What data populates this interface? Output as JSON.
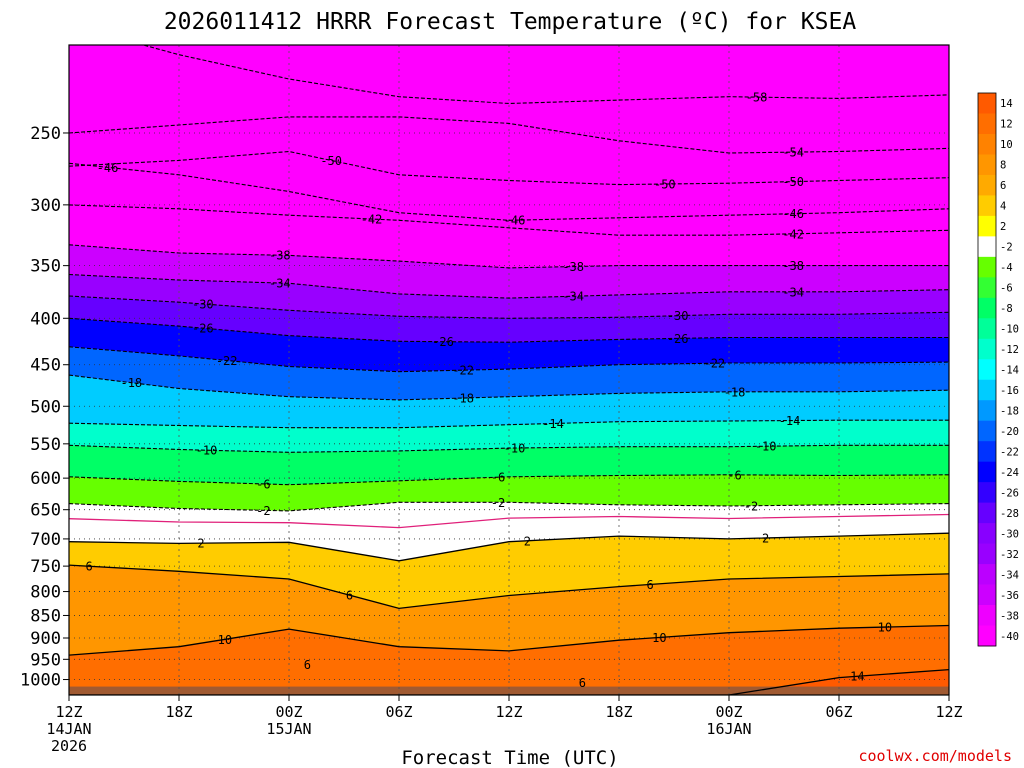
{
  "chart_data": {
    "type": "heatmap",
    "title": "2026011412 HRRR Forecast Temperature (ºC) for KSEA",
    "xlabel": "Forecast Time (UTC)",
    "ylabel": "",
    "credit": "coolwx.com/models",
    "y_scale": "log-pressure",
    "ylim": [
      1040,
      200
    ],
    "y_ticks": [
      250,
      300,
      350,
      400,
      450,
      500,
      550,
      600,
      650,
      700,
      750,
      800,
      850,
      900,
      950,
      1000
    ],
    "x_hours": [
      0,
      6,
      12,
      18,
      24,
      30,
      36,
      42,
      48
    ],
    "x_tick_labels": [
      [
        "12Z",
        "14JAN",
        "2026"
      ],
      [
        "18Z"
      ],
      [
        "00Z",
        "15JAN"
      ],
      [
        "06Z"
      ],
      [
        "12Z"
      ],
      [
        "18Z"
      ],
      [
        "00Z",
        "16JAN"
      ],
      [
        "06Z"
      ],
      [
        "12Z"
      ]
    ],
    "grid": true,
    "legend": "right colorbar",
    "colorbar_labels": [
      "14",
      "12",
      "10",
      "8",
      "6",
      "4",
      "2",
      "-2",
      "-4",
      "-6",
      "-8",
      "-10",
      "-12",
      "-14",
      "-16",
      "-18",
      "-20",
      "-22",
      "-24",
      "-26",
      "-28",
      "-30",
      "-32",
      "-34",
      "-36",
      "-38",
      "-40"
    ],
    "colorbar_colors": [
      "#ff5a00",
      "#ff6e00",
      "#ff8200",
      "#ff9600",
      "#ffaa00",
      "#ffcc00",
      "#ffff00",
      "#ffffff",
      "#66ff00",
      "#33ff33",
      "#00ff66",
      "#00ff99",
      "#00ffcc",
      "#00ffff",
      "#00ccff",
      "#0099ff",
      "#0066ff",
      "#0033ff",
      "#0000ff",
      "#3300ff",
      "#6600ff",
      "#8800ff",
      "#9900ff",
      "#bb00ff",
      "#cc00ff",
      "#ee00ff",
      "#ff00ff"
    ],
    "contour_levels": [
      {
        "value": -58,
        "pressure": [
          190,
          205,
          218,
          228,
          232,
          230,
          228,
          229,
          227
        ],
        "labels": [
          {
            "text": "-58",
            "hour": 37.5
          }
        ]
      },
      {
        "value": -54,
        "pressure": [
          250,
          245,
          240,
          240,
          244,
          255,
          263,
          262,
          260
        ],
        "labels": [
          {
            "text": "-54",
            "hour": 39.5
          }
        ]
      },
      {
        "value": -50,
        "pressure": [
          272,
          268,
          262,
          278,
          282,
          285,
          284,
          282,
          280
        ],
        "labels": [
          {
            "text": "-50",
            "hour": 14.3
          },
          {
            "text": "-50",
            "hour": 32.5
          },
          {
            "text": "-50",
            "hour": 39.5
          }
        ]
      },
      {
        "value": -46,
        "pressure": [
          270,
          278,
          290,
          306,
          312,
          310,
          308,
          306,
          303
        ],
        "labels": [
          {
            "text": "-46",
            "hour": 2.1
          },
          {
            "text": "-46",
            "hour": 24.3
          },
          {
            "text": "-46",
            "hour": 39.5
          }
        ]
      },
      {
        "value": -42,
        "pressure": [
          300,
          303,
          308,
          312,
          318,
          324,
          324,
          322,
          320
        ],
        "labels": [
          {
            "text": "-42",
            "hour": 16.5
          },
          {
            "text": "-42",
            "hour": 39.5
          }
        ]
      },
      {
        "value": -38,
        "pressure": [
          332,
          339,
          341,
          346,
          352,
          350,
          350,
          350,
          350
        ],
        "labels": [
          {
            "text": "-38",
            "hour": 11.5
          },
          {
            "text": "-38",
            "hour": 27.5
          },
          {
            "text": "-38",
            "hour": 39.5
          }
        ]
      },
      {
        "value": -34,
        "pressure": [
          358,
          363,
          366,
          376,
          380,
          377,
          374,
          374,
          372
        ],
        "labels": [
          {
            "text": "-34",
            "hour": 11.5
          },
          {
            "text": "-34",
            "hour": 27.5
          },
          {
            "text": "-34",
            "hour": 39.5
          }
        ]
      },
      {
        "value": -30,
        "pressure": [
          378,
          384,
          392,
          398,
          400,
          399,
          396,
          396,
          394
        ],
        "labels": [
          {
            "text": "-30",
            "hour": 7.3
          },
          {
            "text": "-30",
            "hour": 33.2
          }
        ]
      },
      {
        "value": -26,
        "pressure": [
          400,
          408,
          418,
          424,
          425,
          422,
          420,
          420,
          420
        ],
        "labels": [
          {
            "text": "-26",
            "hour": 7.3
          },
          {
            "text": "-26",
            "hour": 20.4
          },
          {
            "text": "-26",
            "hour": 33.2
          }
        ]
      },
      {
        "value": -22,
        "pressure": [
          430,
          440,
          452,
          458,
          455,
          450,
          448,
          448,
          447
        ],
        "labels": [
          {
            "text": "-22",
            "hour": 8.6
          },
          {
            "text": "-22",
            "hour": 21.5
          },
          {
            "text": "-22",
            "hour": 35.2
          }
        ]
      },
      {
        "value": -18,
        "pressure": [
          462,
          478,
          488,
          492,
          488,
          484,
          482,
          482,
          480
        ],
        "labels": [
          {
            "text": "-18",
            "hour": 3.4
          },
          {
            "text": "-18",
            "hour": 21.5
          },
          {
            "text": "-18",
            "hour": 36.3
          }
        ]
      },
      {
        "value": -14,
        "pressure": [
          522,
          525,
          528,
          528,
          524,
          520,
          519,
          518,
          518
        ],
        "labels": [
          {
            "text": "-14",
            "hour": 26.4
          },
          {
            "text": "-14",
            "hour": 39.3
          }
        ]
      },
      {
        "value": -10,
        "pressure": [
          552,
          558,
          562,
          560,
          556,
          554,
          554,
          552,
          552
        ],
        "labels": [
          {
            "text": "-10",
            "hour": 7.5
          },
          {
            "text": "-10",
            "hour": 24.3
          },
          {
            "text": "-10",
            "hour": 38.0
          }
        ]
      },
      {
        "value": -6,
        "pressure": [
          598,
          605,
          610,
          604,
          598,
          596,
          595,
          596,
          595
        ],
        "labels": [
          {
            "text": "-6",
            "hour": 10.6
          },
          {
            "text": "-6",
            "hour": 23.4
          },
          {
            "text": "-6",
            "hour": 36.3
          }
        ]
      },
      {
        "value": -2,
        "pressure": [
          640,
          648,
          652,
          638,
          638,
          642,
          644,
          642,
          640
        ],
        "labels": [
          {
            "text": "-2",
            "hour": 10.6
          },
          {
            "text": "-2",
            "hour": 23.4
          },
          {
            "text": "-2",
            "hour": 37.2
          }
        ]
      },
      {
        "value": 2,
        "pressure": [
          705,
          708,
          706,
          740,
          705,
          695,
          700,
          695,
          690
        ],
        "labels": [
          {
            "text": "2",
            "hour": 7.2
          },
          {
            "text": "2",
            "hour": 25.0
          },
          {
            "text": "2",
            "hour": 38.0
          }
        ]
      },
      {
        "value": 6,
        "pressure": [
          748,
          760,
          775,
          835,
          808,
          790,
          775,
          770,
          765
        ],
        "labels": [
          {
            "text": "6",
            "hour": 1.1
          },
          {
            "text": "6",
            "hour": 15.3
          },
          {
            "text": "6",
            "hour": 31.7
          }
        ]
      },
      {
        "value": 10,
        "pressure": [
          940,
          920,
          880,
          920,
          930,
          905,
          888,
          878,
          872
        ],
        "labels": [
          {
            "text": "10",
            "hour": 8.5
          },
          {
            "text": "10",
            "hour": 32.2
          },
          {
            "text": "10",
            "hour": 44.5
          }
        ]
      },
      {
        "value": 14,
        "pressure": [
          1040,
          1040,
          1040,
          1040,
          1040,
          1040,
          1040,
          995,
          975
        ],
        "labels": [
          {
            "text": "14",
            "hour": 43.0
          }
        ]
      }
    ],
    "extra_labels": [
      {
        "text": "6",
        "hour": 13.0,
        "pressure": 962
      },
      {
        "text": "6",
        "hour": 28.0,
        "pressure": 1008
      }
    ]
  }
}
